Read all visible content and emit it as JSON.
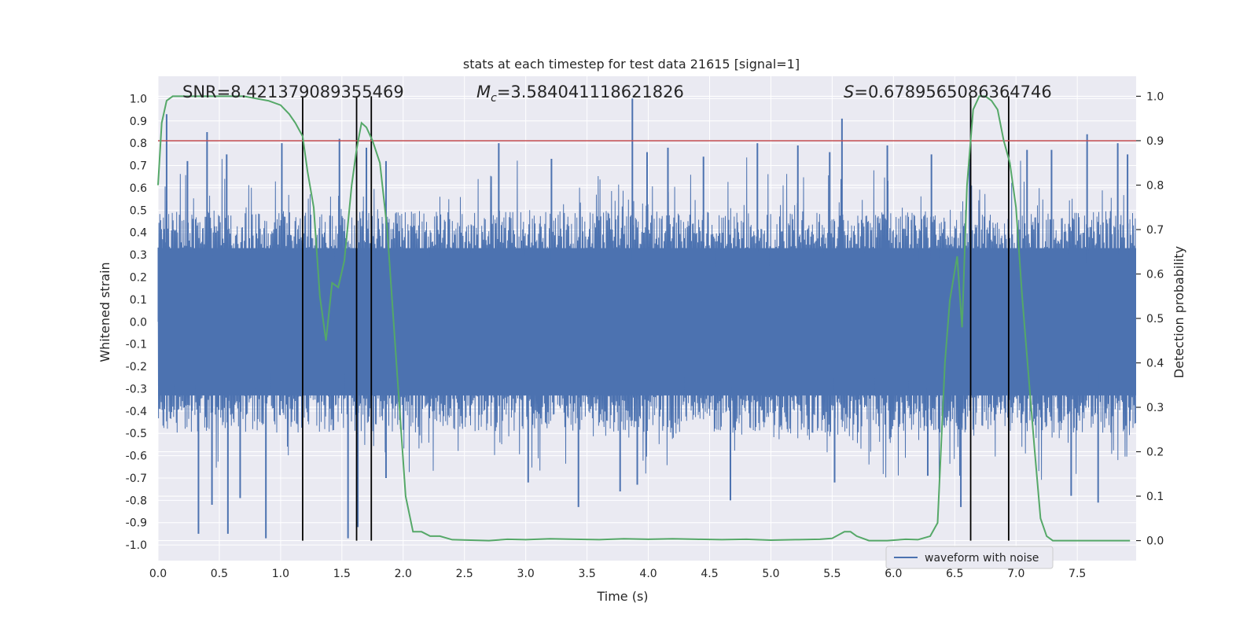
{
  "chart_data": {
    "type": "line",
    "title": "stats at each timestep for test data 21615 [signal=1]",
    "xlabel": "Time (s)",
    "ylabel_left": "Whitened strain",
    "ylabel_right": "Detection probability",
    "xlim": [
      0.0,
      7.98
    ],
    "ylim_left": [
      -1.07,
      1.1
    ],
    "ylim_right": [
      -0.045,
      1.045
    ],
    "x_ticks": [
      0.0,
      0.5,
      1.0,
      1.5,
      2.0,
      2.5,
      3.0,
      3.5,
      4.0,
      4.5,
      5.0,
      5.5,
      6.0,
      6.5,
      7.0,
      7.5
    ],
    "x_tick_labels": [
      "0.0",
      "0.5",
      "1.0",
      "1.5",
      "2.0",
      "2.5",
      "3.0",
      "3.5",
      "4.0",
      "4.5",
      "5.0",
      "5.5",
      "6.0",
      "6.5",
      "7.0",
      "7.5"
    ],
    "y_left_ticks": [
      1.0,
      0.9,
      0.8,
      0.7,
      0.6,
      0.5,
      0.4,
      0.3,
      0.2,
      0.1,
      0.0,
      -0.1,
      -0.2,
      -0.3,
      -0.4,
      -0.5,
      -0.6,
      -0.7,
      -0.8,
      -0.9,
      -1.0
    ],
    "y_left_tick_labels": [
      "1.0",
      "0.9",
      "0.8",
      "0.7",
      "0.6",
      "0.5",
      "0.4",
      "0.3",
      "0.2",
      "0.1",
      "0.0",
      "-0.1",
      "-0.2",
      "-0.3",
      "-0.4",
      "-0.5",
      "-0.6",
      "-0.7",
      "-0.8",
      "-0.9",
      "-1.0"
    ],
    "y_right_ticks": [
      1.0,
      0.9,
      0.8,
      0.7,
      0.6,
      0.5,
      0.4,
      0.3,
      0.2,
      0.1,
      0.0
    ],
    "y_right_tick_labels": [
      "1.0",
      "0.9",
      "0.8",
      "0.7",
      "0.6",
      "0.5",
      "0.4",
      "0.3",
      "0.2",
      "0.1",
      "0.0"
    ],
    "grid": true,
    "legend": {
      "placement": "lower-right",
      "entries": [
        "waveform with noise"
      ]
    },
    "annotations": {
      "snr": "SNR=8.421379089355469",
      "mc_symbol": "M",
      "mc_sub": "c",
      "mc_value": "=3.584041118621826",
      "s_symbol": "S",
      "s_value": "=0.6789565086364746"
    },
    "threshold": {
      "value": 0.9,
      "axis": "right",
      "color": "#c44e52"
    },
    "vertical_lines_x": [
      1.18,
      1.62,
      1.74,
      6.63,
      6.94
    ],
    "waveform": {
      "name": "waveform with noise",
      "color": "#4c72b0",
      "duration": 7.98,
      "band_halfwidth": 0.33,
      "spikes_pos": [
        [
          0.07,
          0.93
        ],
        [
          0.24,
          0.72
        ],
        [
          0.4,
          0.85
        ],
        [
          0.56,
          0.75
        ],
        [
          1.01,
          0.8
        ],
        [
          1.48,
          0.82
        ],
        [
          1.7,
          0.78
        ],
        [
          1.86,
          0.72
        ],
        [
          2.78,
          0.8
        ],
        [
          3.21,
          0.73
        ],
        [
          3.87,
          1.0
        ],
        [
          3.99,
          0.76
        ],
        [
          4.16,
          0.78
        ],
        [
          4.45,
          0.74
        ],
        [
          4.89,
          0.8
        ],
        [
          5.22,
          0.79
        ],
        [
          5.48,
          0.76
        ],
        [
          5.58,
          0.91
        ],
        [
          5.95,
          0.79
        ],
        [
          6.31,
          0.75
        ],
        [
          6.62,
          0.73
        ],
        [
          7.09,
          0.77
        ],
        [
          7.29,
          0.77
        ],
        [
          7.58,
          0.84
        ],
        [
          7.83,
          0.8
        ],
        [
          7.91,
          0.75
        ]
      ],
      "spikes_neg": [
        [
          0.33,
          -0.95
        ],
        [
          0.44,
          -0.82
        ],
        [
          0.57,
          -0.95
        ],
        [
          0.67,
          -0.79
        ],
        [
          0.88,
          -0.97
        ],
        [
          1.55,
          -0.97
        ],
        [
          1.63,
          -0.92
        ],
        [
          1.86,
          -0.7
        ],
        [
          3.02,
          -0.72
        ],
        [
          3.43,
          -0.83
        ],
        [
          3.77,
          -0.76
        ],
        [
          3.91,
          -0.73
        ],
        [
          4.67,
          -0.8
        ],
        [
          5.52,
          -0.72
        ],
        [
          6.28,
          -0.69
        ],
        [
          6.55,
          -0.83
        ],
        [
          7.45,
          -0.78
        ],
        [
          7.67,
          -0.81
        ]
      ]
    },
    "probability": {
      "color": "#55a868",
      "x": [
        0.0,
        0.03,
        0.07,
        0.12,
        0.2,
        0.3,
        0.4,
        0.5,
        0.6,
        0.7,
        0.8,
        0.9,
        1.0,
        1.07,
        1.12,
        1.18,
        1.22,
        1.27,
        1.32,
        1.37,
        1.42,
        1.47,
        1.52,
        1.58,
        1.62,
        1.66,
        1.7,
        1.75,
        1.81,
        1.87,
        1.92,
        1.97,
        2.02,
        2.08,
        2.15,
        2.22,
        2.3,
        2.4,
        2.55,
        2.7,
        2.85,
        3.0,
        3.2,
        3.4,
        3.6,
        3.8,
        4.0,
        4.2,
        4.4,
        4.6,
        4.8,
        5.0,
        5.2,
        5.4,
        5.5,
        5.6,
        5.65,
        5.7,
        5.8,
        5.95,
        6.1,
        6.2,
        6.3,
        6.36,
        6.42,
        6.46,
        6.52,
        6.56,
        6.6,
        6.65,
        6.7,
        6.75,
        6.8,
        6.85,
        6.9,
        6.95,
        7.0,
        7.05,
        7.1,
        7.15,
        7.2,
        7.25,
        7.3,
        7.4,
        7.6,
        7.8,
        7.93
      ],
      "y": [
        0.8,
        0.94,
        0.99,
        1.0,
        1.0,
        1.0,
        1.0,
        1.0,
        1.0,
        1.0,
        0.995,
        0.99,
        0.98,
        0.96,
        0.94,
        0.91,
        0.83,
        0.75,
        0.55,
        0.45,
        0.58,
        0.57,
        0.63,
        0.8,
        0.88,
        0.94,
        0.93,
        0.9,
        0.85,
        0.7,
        0.5,
        0.3,
        0.1,
        0.02,
        0.02,
        0.01,
        0.01,
        0.002,
        0.001,
        0.0,
        0.003,
        0.002,
        0.004,
        0.003,
        0.002,
        0.004,
        0.003,
        0.004,
        0.003,
        0.002,
        0.003,
        0.001,
        0.002,
        0.003,
        0.005,
        0.02,
        0.02,
        0.01,
        0.0,
        0.0,
        0.003,
        0.002,
        0.01,
        0.04,
        0.4,
        0.54,
        0.64,
        0.48,
        0.8,
        0.97,
        1.0,
        1.0,
        0.99,
        0.97,
        0.9,
        0.85,
        0.75,
        0.55,
        0.38,
        0.21,
        0.05,
        0.01,
        0.0,
        0.0,
        0.0,
        0.0,
        0.0
      ]
    }
  }
}
